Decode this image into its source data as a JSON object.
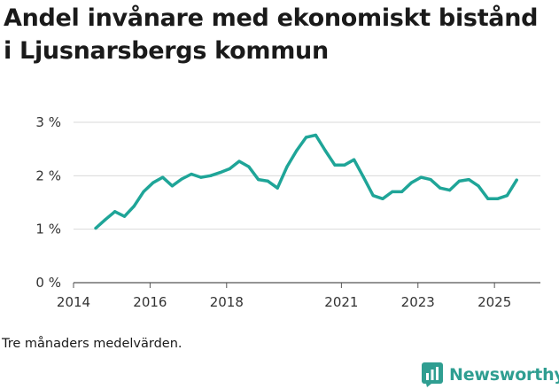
{
  "title": "Andel invånare med ekonomiskt bistånd i Ljusnarsbergs kommun",
  "footnote": "Tre månaders medelvärden.",
  "brand": {
    "name": "Newsworthy",
    "icon": "newsworthy-logo-icon",
    "color": "#2f9e91"
  },
  "chart_data": {
    "type": "line",
    "title": "Andel invånare med ekonomiskt bistånd i Ljusnarsbergs kommun",
    "xlabel": "",
    "ylabel": "",
    "xlim": [
      2014,
      2026.2
    ],
    "ylim": [
      0,
      3
    ],
    "x_ticks": [
      {
        "value": 2014,
        "label": "2014"
      },
      {
        "value": 2016,
        "label": "2016"
      },
      {
        "value": 2018,
        "label": "2018"
      },
      {
        "value": 2021,
        "label": "2021"
      },
      {
        "value": 2023,
        "label": "2023"
      },
      {
        "value": 2025,
        "label": "2025"
      }
    ],
    "y_ticks": [
      {
        "value": 0,
        "label": "0 %"
      },
      {
        "value": 1,
        "label": "1 %"
      },
      {
        "value": 2,
        "label": "2 %"
      },
      {
        "value": 3,
        "label": "3 %"
      }
    ],
    "grid": true,
    "series": [
      {
        "name": "Andel invånare med ekonomiskt bistånd",
        "color": "#1fa598",
        "x": [
          2014.58,
          2014.83,
          2015.08,
          2015.33,
          2015.58,
          2015.83,
          2016.08,
          2016.33,
          2016.58,
          2016.83,
          2017.08,
          2017.33,
          2017.58,
          2017.83,
          2018.08,
          2018.33,
          2018.58,
          2018.83,
          2019.08,
          2019.33,
          2019.58,
          2019.83,
          2020.08,
          2020.33,
          2020.58,
          2020.83,
          2021.08,
          2021.33,
          2021.58,
          2021.83,
          2022.08,
          2022.33,
          2022.58,
          2022.83,
          2023.08,
          2023.33,
          2023.58,
          2023.83,
          2024.08,
          2024.33,
          2024.58,
          2024.83,
          2025.08,
          2025.33,
          2025.58
        ],
        "y": [
          1.02,
          1.18,
          1.33,
          1.24,
          1.43,
          1.7,
          1.87,
          1.97,
          1.81,
          1.94,
          2.03,
          1.97,
          2.0,
          2.06,
          2.13,
          2.27,
          2.17,
          1.93,
          1.9,
          1.77,
          2.17,
          2.47,
          2.72,
          2.76,
          2.47,
          2.2,
          2.2,
          2.3,
          1.97,
          1.63,
          1.57,
          1.7,
          1.7,
          1.87,
          1.97,
          1.93,
          1.77,
          1.73,
          1.9,
          1.93,
          1.81,
          1.57,
          1.57,
          1.63,
          1.92
        ]
      }
    ]
  }
}
